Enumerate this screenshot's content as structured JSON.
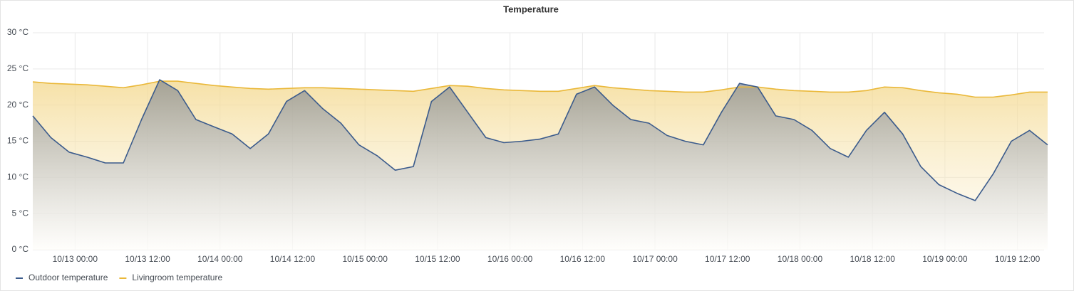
{
  "chart_data": {
    "type": "line",
    "title": "Temperature",
    "x": [
      "10/12 17:00",
      "10/12 20:00",
      "10/12 23:00",
      "10/13 02:00",
      "10/13 05:00",
      "10/13 08:00",
      "10/13 11:00",
      "10/13 14:00",
      "10/13 17:00",
      "10/13 20:00",
      "10/13 23:00",
      "10/14 02:00",
      "10/14 05:00",
      "10/14 08:00",
      "10/14 11:00",
      "10/14 14:00",
      "10/14 17:00",
      "10/14 20:00",
      "10/14 23:00",
      "10/15 02:00",
      "10/15 05:00",
      "10/15 08:00",
      "10/15 11:00",
      "10/15 14:00",
      "10/15 17:00",
      "10/15 20:00",
      "10/15 23:00",
      "10/16 02:00",
      "10/16 05:00",
      "10/16 08:00",
      "10/16 11:00",
      "10/16 14:00",
      "10/16 17:00",
      "10/16 20:00",
      "10/16 23:00",
      "10/17 02:00",
      "10/17 05:00",
      "10/17 08:00",
      "10/17 11:00",
      "10/17 14:00",
      "10/17 17:00",
      "10/17 20:00",
      "10/17 23:00",
      "10/18 02:00",
      "10/18 05:00",
      "10/18 08:00",
      "10/18 11:00",
      "10/18 14:00",
      "10/18 17:00",
      "10/18 20:00",
      "10/18 23:00",
      "10/19 02:00",
      "10/19 05:00",
      "10/19 08:00",
      "10/19 11:00",
      "10/19 14:00",
      "10/19 17:00"
    ],
    "series": [
      {
        "name": "Outdoor temperature",
        "color": "#3b5b8c",
        "values": [
          18.5,
          15.5,
          13.5,
          12.8,
          12.0,
          12.0,
          18,
          23.5,
          22,
          18.0,
          17.0,
          16.0,
          14.0,
          16.0,
          20.5,
          22.0,
          19.5,
          17.5,
          14.5,
          13,
          11.0,
          11.5,
          20.5,
          22.5,
          19.0,
          15.5,
          14.8,
          15.0,
          15.3,
          16,
          21.5,
          22.5,
          20.0,
          18.0,
          17.5,
          15.8,
          15.0,
          14.5,
          19,
          23.0,
          22.5,
          18.5,
          18.0,
          16.5,
          14,
          12.8,
          16.5,
          19.0,
          16.0,
          11.5,
          9.0,
          7.8,
          6.8,
          10.5,
          15,
          16.5,
          14.5
        ]
      },
      {
        "name": "Livingroom temperature",
        "color": "#eab839",
        "values": [
          23.2,
          23.0,
          22.9,
          22.8,
          22.6,
          22.4,
          22.8,
          23.3,
          23.3,
          23.0,
          22.7,
          22.5,
          22.3,
          22.2,
          22.3,
          22.4,
          22.4,
          22.3,
          22.2,
          22.1,
          22.0,
          21.9,
          22.3,
          22.7,
          22.6,
          22.3,
          22.1,
          22.0,
          21.9,
          21.9,
          22.3,
          22.7,
          22.4,
          22.2,
          22.0,
          21.9,
          21.8,
          21.8,
          22.1,
          22.5,
          22.5,
          22.2,
          22.0,
          21.9,
          21.8,
          21.8,
          22.0,
          22.5,
          22.4,
          22.0,
          21.7,
          21.5,
          21.1,
          21.1,
          21.4,
          21.8,
          21.8
        ]
      }
    ],
    "xlim": [
      "10/12 17:00",
      "10/19 17:00"
    ],
    "xticks": [
      "10/13 00:00",
      "10/13 12:00",
      "10/14 00:00",
      "10/14 12:00",
      "10/15 00:00",
      "10/15 12:00",
      "10/16 00:00",
      "10/16 12:00",
      "10/17 00:00",
      "10/17 12:00",
      "10/18 00:00",
      "10/18 12:00",
      "10/19 00:00",
      "10/19 12:00"
    ],
    "ylim": [
      0,
      30
    ],
    "yticks": [
      {
        "value": 0,
        "label": "0 °C"
      },
      {
        "value": 5,
        "label": "5 °C"
      },
      {
        "value": 10,
        "label": "10 °C"
      },
      {
        "value": 15,
        "label": "15 °C"
      },
      {
        "value": 20,
        "label": "20 °C"
      },
      {
        "value": 25,
        "label": "25 °C"
      },
      {
        "value": 30,
        "label": "30 °C"
      }
    ],
    "grid": true
  }
}
